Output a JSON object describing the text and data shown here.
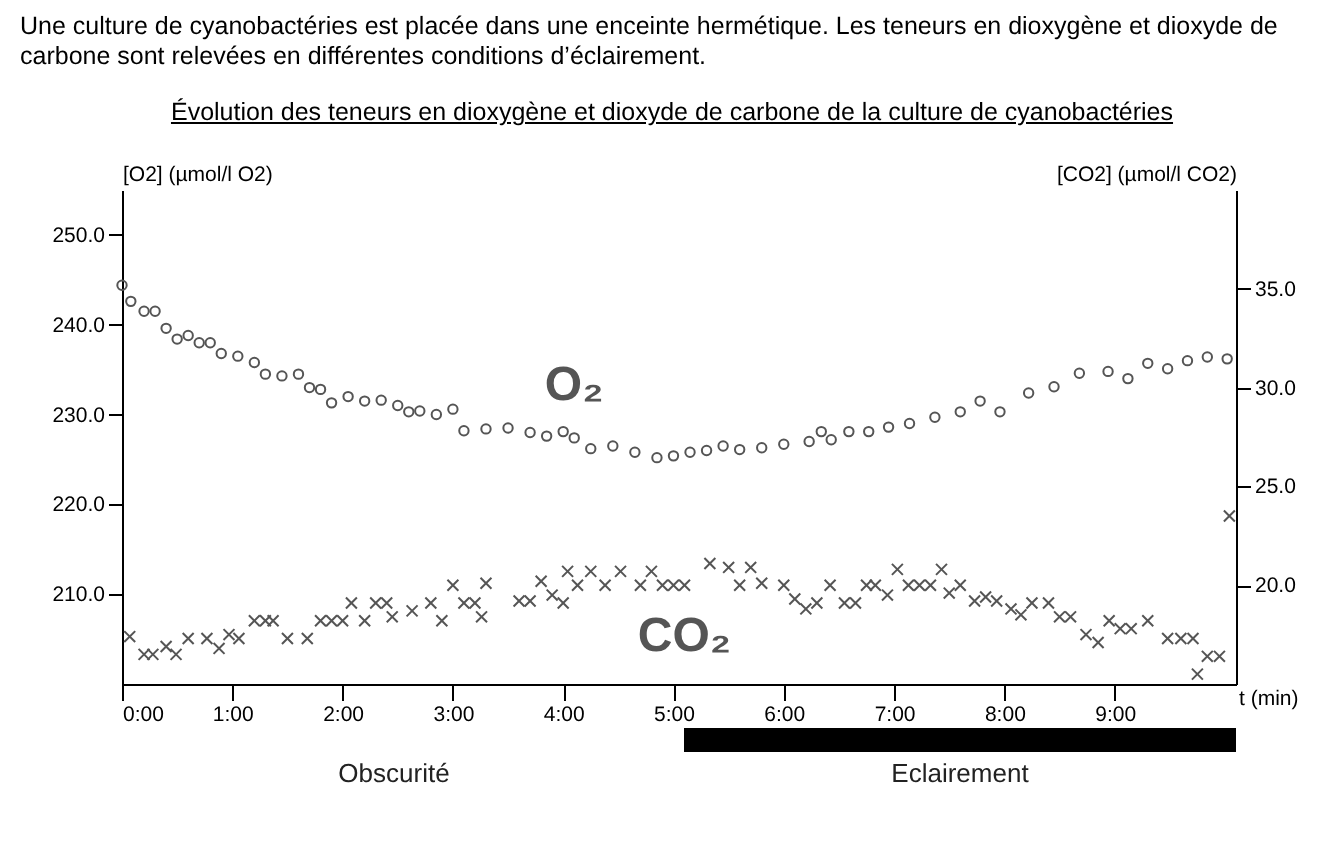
{
  "chart_data": {
    "type": "scatter",
    "title": "Évolution des teneurs en dioxygène et dioxyde de carbone de la culture de cyanobactéries",
    "annotations": [
      "Une culture de cyanobactéries est placée dans une enceinte hermétique. Les teneurs en dioxygène et dioxyde de carbone sont relevées en différentes conditions d’éclairement.",
      "Obscurité",
      "Eclairement"
    ],
    "xlabel": "t (min)",
    "ylabel": "[O2] (µmol/l O2)",
    "y2label": "[CO2] (µmol/l CO2)",
    "xlim": [
      0,
      10.1
    ],
    "xticks": [
      {
        "value": 0,
        "label": "0:00"
      },
      {
        "value": 1,
        "label": "1:00"
      },
      {
        "value": 2,
        "label": "2:00"
      },
      {
        "value": 3,
        "label": "3:00"
      },
      {
        "value": 4,
        "label": "4:00"
      },
      {
        "value": 5,
        "label": "5:00"
      },
      {
        "value": 6,
        "label": "6:00"
      },
      {
        "value": 7,
        "label": "7:00"
      },
      {
        "value": 8,
        "label": "8:00"
      },
      {
        "value": 9,
        "label": "9:00"
      }
    ],
    "ylim": [
      200,
      255
    ],
    "yticks": [
      {
        "value": 210,
        "label": "210.0"
      },
      {
        "value": 220,
        "label": "220.0"
      },
      {
        "value": 230,
        "label": "230.0"
      },
      {
        "value": 240,
        "label": "240.0"
      },
      {
        "value": 250,
        "label": "250.0"
      }
    ],
    "y2lim": [
      15,
      40
    ],
    "y2ticks": [
      {
        "value": 20,
        "label": "20.0"
      },
      {
        "value": 25,
        "label": "25.0"
      },
      {
        "value": 30,
        "label": "30.0"
      },
      {
        "value": 35,
        "label": "35.0"
      }
    ],
    "grid": false,
    "series": [
      {
        "name": "O₂",
        "color": "#555555",
        "marker": "circle",
        "x": [
          0,
          0.08,
          0.2,
          0.3,
          0.4,
          0.5,
          0.6,
          0.7,
          0.8,
          0.9,
          1.05,
          1.2,
          1.3,
          1.45,
          1.6,
          1.7,
          1.8,
          1.9,
          2.05,
          2.2,
          2.35,
          2.5,
          2.6,
          2.7,
          2.85,
          3.0,
          3.1,
          3.3,
          3.5,
          3.7,
          3.85,
          4.0,
          4.1,
          4.25,
          4.45,
          4.65,
          4.85,
          5.0,
          5.15,
          5.3,
          5.45,
          5.6,
          5.8,
          6.0,
          6.23,
          6.34,
          6.43,
          6.59,
          6.77,
          6.95,
          7.14,
          7.37,
          7.6,
          7.78,
          7.96,
          8.22,
          8.45,
          8.68,
          8.94,
          9.12,
          9.3,
          9.48,
          9.66,
          9.84,
          10.02
        ],
        "values": [
          244.4,
          242.6,
          241.5,
          241.5,
          239.6,
          238.4,
          238.8,
          238,
          238,
          236.8,
          236.5,
          235.8,
          234.5,
          234.3,
          234.5,
          233,
          232.8,
          231.3,
          232,
          231.5,
          231.6,
          231,
          230.3,
          230.4,
          230,
          230.6,
          228.2,
          228.4,
          228.5,
          228,
          227.6,
          228.1,
          227.4,
          226.2,
          226.5,
          225.8,
          225.2,
          225.4,
          225.8,
          226,
          226.5,
          226.1,
          226.3,
          226.7,
          227,
          228.1,
          227.2,
          228.1,
          228.1,
          228.6,
          229,
          229.7,
          230.3,
          231.5,
          230.3,
          232.4,
          233.1,
          234.6,
          234.8,
          234,
          235.7,
          235.1,
          236,
          236.4,
          236.2
        ]
      },
      {
        "name": "CO₂",
        "color": "#555555",
        "marker": "cross",
        "axis": "y2",
        "x": [
          0.07,
          0.2,
          0.28,
          0.4,
          0.49,
          0.6,
          0.77,
          0.88,
          0.97,
          1.06,
          1.2,
          1.3,
          1.37,
          1.5,
          1.68,
          1.8,
          1.9,
          2.0,
          2.08,
          2.2,
          2.3,
          2.4,
          2.45,
          2.63,
          2.8,
          2.9,
          3.0,
          3.1,
          3.2,
          3.26,
          3.3,
          3.6,
          3.7,
          3.8,
          3.9,
          4.0,
          4.04,
          4.13,
          4.25,
          4.38,
          4.52,
          4.7,
          4.8,
          4.9,
          5.0,
          5.1,
          5.33,
          5.5,
          5.6,
          5.7,
          5.8,
          6.0,
          6.1,
          6.2,
          6.3,
          6.42,
          6.55,
          6.65,
          6.75,
          6.83,
          6.94,
          7.03,
          7.13,
          7.23,
          7.33,
          7.43,
          7.5,
          7.6,
          7.73,
          7.83,
          7.93,
          8.06,
          8.15,
          8.25,
          8.4,
          8.5,
          8.6,
          8.74,
          8.85,
          8.95,
          9.05,
          9.15,
          9.3,
          9.48,
          9.6,
          9.71,
          9.75,
          9.84,
          9.95,
          10.04
        ],
        "values": [
          17.4,
          16.5,
          16.5,
          16.9,
          16.5,
          17.3,
          17.3,
          16.8,
          17.5,
          17.3,
          18.2,
          18.2,
          18.2,
          17.3,
          17.3,
          18.2,
          18.2,
          18.2,
          19.1,
          18.2,
          19.1,
          19.1,
          18.4,
          18.7,
          19.1,
          18.2,
          20.0,
          19.1,
          19.1,
          18.4,
          20.1,
          19.2,
          19.2,
          20.2,
          19.5,
          19.1,
          20.7,
          20.0,
          20.7,
          20.0,
          20.7,
          20.0,
          20.7,
          20.0,
          20.0,
          20.0,
          21.1,
          20.9,
          20.0,
          20.9,
          20.1,
          20.0,
          19.3,
          18.8,
          19.1,
          20.0,
          19.1,
          19.1,
          20.0,
          20.0,
          19.5,
          20.8,
          20.0,
          20.0,
          20.0,
          20.8,
          19.6,
          20.0,
          19.2,
          19.4,
          19.2,
          18.8,
          18.5,
          19.1,
          19.1,
          18.4,
          18.4,
          17.5,
          17.1,
          18.2,
          17.8,
          17.8,
          18.2,
          17.3,
          17.3,
          17.3,
          15.5,
          16.4,
          16.4,
          23.5
        ]
      }
    ]
  }
}
